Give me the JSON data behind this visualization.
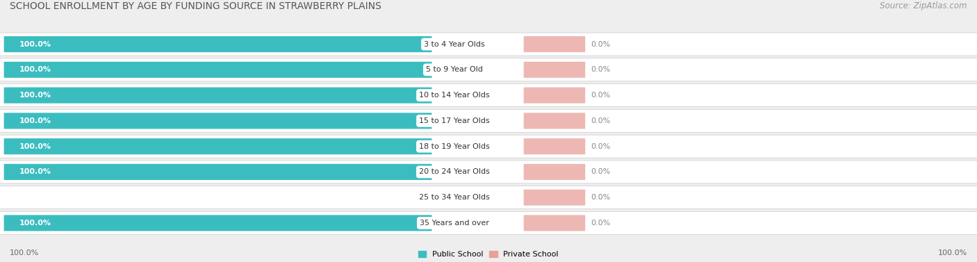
{
  "title": "SCHOOL ENROLLMENT BY AGE BY FUNDING SOURCE IN STRAWBERRY PLAINS",
  "source": "Source: ZipAtlas.com",
  "categories": [
    "3 to 4 Year Olds",
    "5 to 9 Year Old",
    "10 to 14 Year Olds",
    "15 to 17 Year Olds",
    "18 to 19 Year Olds",
    "20 to 24 Year Olds",
    "25 to 34 Year Olds",
    "35 Years and over"
  ],
  "public_values": [
    100.0,
    100.0,
    100.0,
    100.0,
    100.0,
    100.0,
    0.0,
    100.0
  ],
  "private_values": [
    0.0,
    0.0,
    0.0,
    0.0,
    0.0,
    0.0,
    0.0,
    0.0
  ],
  "public_color": "#3bbdc0",
  "private_color": "#e8a09a",
  "public_label": "Public School",
  "private_label": "Private School",
  "bg_color": "#eeeeee",
  "row_bg_color": "#ffffff",
  "title_fontsize": 10,
  "source_fontsize": 8.5,
  "bar_label_fontsize": 8,
  "category_fontsize": 8,
  "axis_label_fontsize": 8,
  "x_left_label": "100.0%",
  "x_right_label": "100.0%"
}
